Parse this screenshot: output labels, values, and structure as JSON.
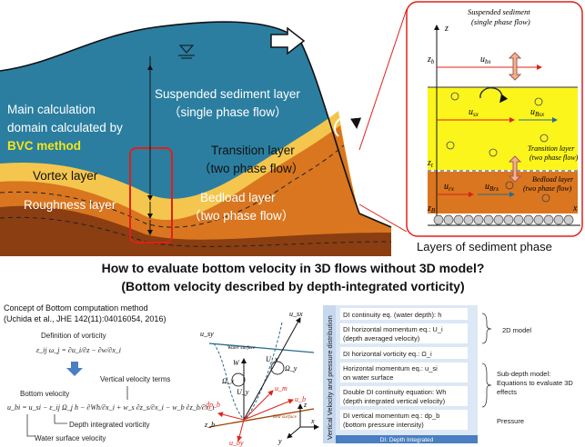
{
  "left_diagram": {
    "domain_label": [
      "Main calculation",
      "domain calculated by"
    ],
    "method": "BVC method",
    "suspended": [
      "Suspended sediment layer",
      "（single phase flow）"
    ],
    "transition": [
      "Transition layer",
      "（two phase flow）"
    ],
    "vortex": "Vortex layer",
    "roughness": "Roughness layer",
    "bedload": [
      "Bedload layer",
      "（two phase flow）"
    ]
  },
  "right_diagram": {
    "suspended": [
      "Suspended sediment",
      "(single phase flow)"
    ],
    "z": "z",
    "zb": {
      "main": "z",
      "sub": "b"
    },
    "ubx": {
      "main": "u",
      "sub": "bx"
    },
    "usx": {
      "main": "u",
      "sub": "sx"
    },
    "uBsx": {
      "main": "u",
      "sub": "Bsx"
    },
    "transition": [
      "Transition layer",
      "(two phase flow)"
    ],
    "zt": {
      "main": "z",
      "sub": "t"
    },
    "bedload": [
      "Bedload layer",
      "(two phase flow)"
    ],
    "urx": {
      "main": "u",
      "sub": "rx"
    },
    "uBrx": {
      "main": "u",
      "sub": "Brx"
    },
    "zB": {
      "main": "z",
      "sub": "B"
    },
    "x": "x"
  },
  "caption": "Layers of sediment phase",
  "heading": [
    "How to evaluate bottom velocity in 3D flows without 3D model?",
    "(Bottom velocity described by depth-integrated vorticity)"
  ],
  "concept": {
    "title": "Concept of Bottom computation method",
    "reference": "(Uchida et al., JHE 142(11):04016054, 2016)",
    "vorticity_title": "Definition of vorticity",
    "vorticity_eq": "ε_ij ω_j = ∂u_i/∂z − ∂w/∂x_i",
    "vertical_terms": "Vertical velocity terms",
    "bottom_velocity": "Bottom velocity",
    "bottom_eq": "u_bi = u_si − ε_ij Ω_j h − ∂Wh/∂x_i + w_s ∂z_s/∂x_i − w_b ∂z_b/∂x_i",
    "di_vorticity": "Depth integrated vorticity",
    "surface_velocity": "Water surface velocity"
  },
  "vector_diagram": {
    "usx": "u_sx",
    "usy": "u_sy",
    "water_surface": "Water surface",
    "W": "W",
    "Ux": "U_x",
    "Omega_y": "Ω_y",
    "Omega_x": "Ω_x",
    "Uy": "U_y",
    "ub": "u_b",
    "um": "u_m",
    "dpb": "dp_b",
    "zb": "z_b",
    "uby": "u_by",
    "bed": "Bed surface",
    "z": "z",
    "x": "x",
    "y": "y"
  },
  "model_table": {
    "side_label": "Vertical Velocity and pressure distribution",
    "rows": [
      [
        "DI continuity eq. (water depth): h"
      ],
      [
        "DI horizontal momentum eq.: U_i",
        "(depth averaged velocity)"
      ],
      [
        "DI horizontal vorticity eq.: Ω_i"
      ],
      [
        "Horizontal momentum eq.: u_si",
        "on water surface"
      ],
      [
        "Double DI continuity equation: Wh",
        "(depth integrated vertical velocity)"
      ],
      [
        "DI vertical momentum eq.: dp_b",
        "(bottom pressure intensity)"
      ]
    ],
    "footer": "DI: Depth Integrated",
    "groups": [
      [
        "2D model"
      ],
      [
        "Sub-depth model:",
        "Equations to evaluate 3D",
        "effects"
      ],
      [
        "Pressure"
      ]
    ]
  }
}
